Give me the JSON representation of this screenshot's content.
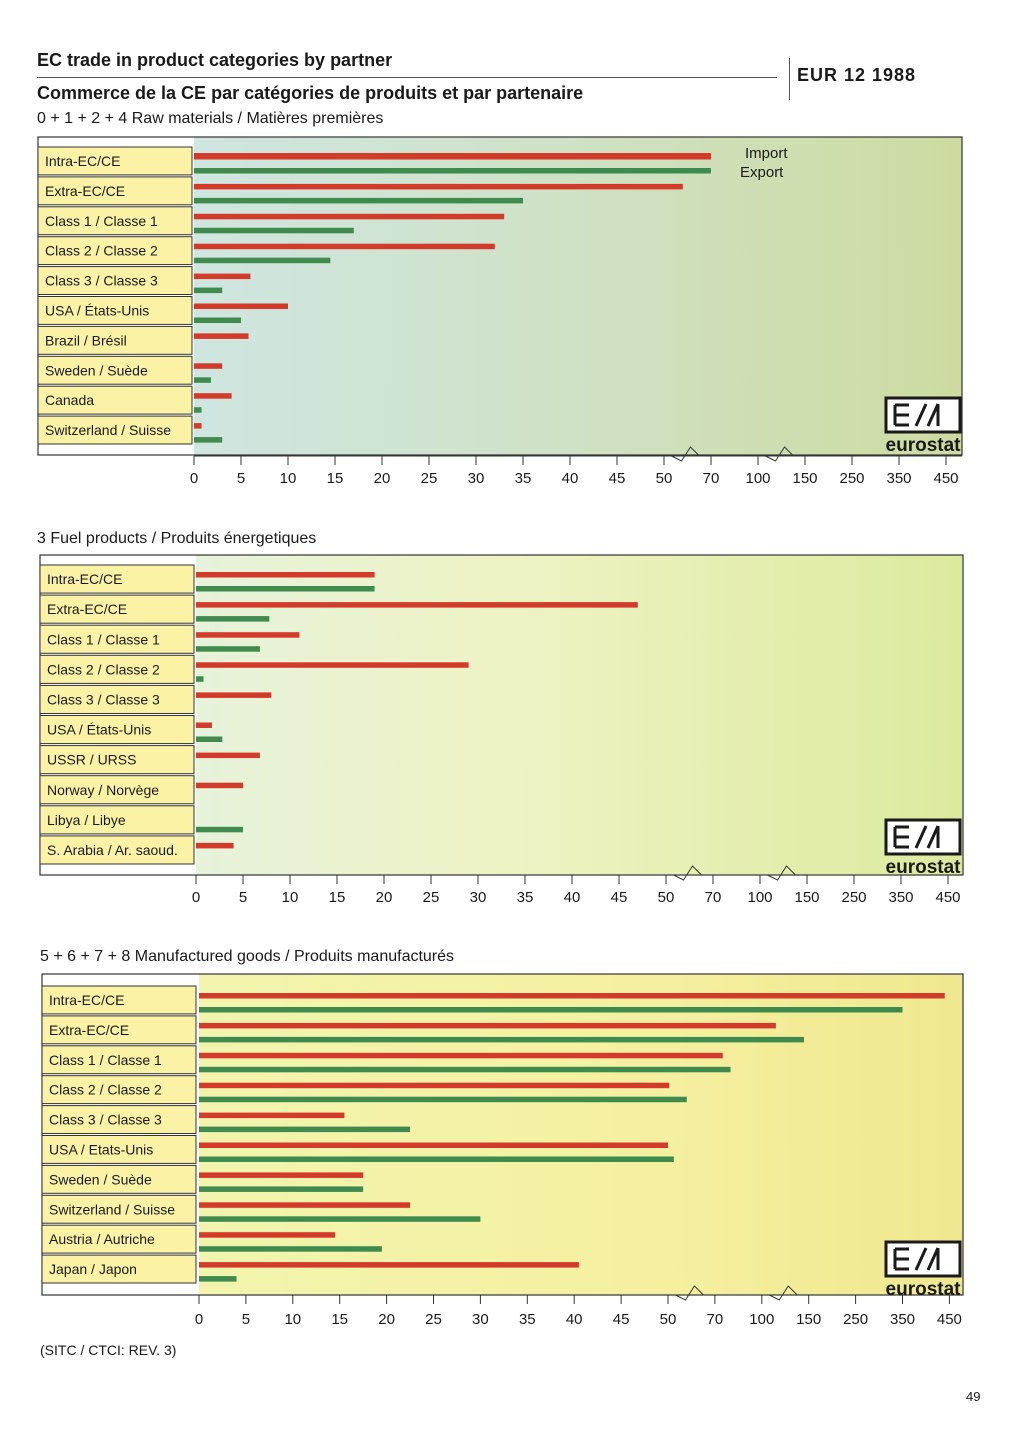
{
  "header": {
    "title_en": "EC trade in product categories by partner",
    "title_fr": "Commerce de la CE par catégories de produits et par partenaire",
    "side_label": "EUR 12 1988"
  },
  "legend": {
    "import": "Import",
    "export": "Export"
  },
  "logo_text": "eurostat",
  "footnote": "(SITC / CTCI: REV. 3)",
  "page_number": "49",
  "colors": {
    "import": "#d23a2a",
    "export": "#3f8a4c",
    "label_box": "#fbf2a6"
  },
  "chart_data": [
    {
      "type": "bar",
      "orientation": "horizontal",
      "title": "0 + 1 + 2 + 4 Raw materials / Matières premières",
      "categories": [
        "Intra-EC/CE",
        "Extra-EC/CE",
        "Class 1 / Classe 1",
        "Class 2 / Classe 2",
        "Class 3 / Classe 3",
        "USA / États-Unis",
        "Brazil / Brésil",
        "Sweden / Suède",
        "Canada",
        "Switzerland / Suisse"
      ],
      "xtick_labels": [
        "0",
        "5",
        "10",
        "15",
        "20",
        "25",
        "30",
        "35",
        "40",
        "45",
        "50",
        "70",
        "100",
        "150",
        "250",
        "350",
        "450"
      ],
      "xscale": "broken",
      "series": [
        {
          "name": "Import",
          "values": [
            70,
            58,
            33,
            32,
            6,
            10,
            5.8,
            3,
            4,
            0.8
          ]
        },
        {
          "name": "Export",
          "values": [
            70,
            35,
            17,
            14.5,
            3,
            5,
            0,
            1.8,
            0.8,
            3
          ]
        }
      ]
    },
    {
      "type": "bar",
      "orientation": "horizontal",
      "title": "3 Fuel products / Produits énergetiques",
      "categories": [
        "Intra-EC/CE",
        "Extra-EC/CE",
        "Class 1 / Classe 1",
        "Class 2 / Classe 2",
        "Class 3 / Classe 3",
        "USA / États-Unis",
        "USSR / URSS",
        "Norway / Norvège",
        "Libya / Libye",
        "S. Arabia / Ar. saoud."
      ],
      "xtick_labels": [
        "0",
        "5",
        "10",
        "15",
        "20",
        "25",
        "30",
        "35",
        "40",
        "45",
        "50",
        "70",
        "100",
        "150",
        "250",
        "350",
        "450"
      ],
      "xscale": "broken",
      "series": [
        {
          "name": "Import",
          "values": [
            19,
            47,
            11,
            29,
            8,
            1.7,
            6.8,
            5,
            0,
            4
          ]
        },
        {
          "name": "Export",
          "values": [
            19,
            7.8,
            6.8,
            0.8,
            0,
            2.8,
            0,
            0,
            5,
            0
          ]
        }
      ]
    },
    {
      "type": "bar",
      "orientation": "horizontal",
      "title": "5 + 6 + 7 + 8 Manufactured goods / Produits manufacturés",
      "categories": [
        "Intra-EC/CE",
        "Extra-EC/CE",
        "Class 1 / Classe 1",
        "Class 2 / Classe 2",
        "Class 3 / Classe 3",
        "USA / Etats-Unis",
        "Sweden / Suède",
        "Switzerland / Suisse",
        "Austria / Autriche",
        "Japan / Japon"
      ],
      "xtick_labels": [
        "0",
        "5",
        "10",
        "15",
        "20",
        "25",
        "30",
        "35",
        "40",
        "45",
        "50",
        "70",
        "100",
        "150",
        "250",
        "350",
        "450"
      ],
      "xscale": "broken",
      "series": [
        {
          "name": "Import",
          "values": [
            440,
            115,
            75,
            50.5,
            15.5,
            50,
            17.5,
            22.5,
            14.5,
            40.5
          ]
        },
        {
          "name": "Export",
          "values": [
            350,
            145,
            80,
            58,
            22.5,
            52.5,
            17.5,
            30,
            19.5,
            4
          ]
        }
      ]
    }
  ]
}
